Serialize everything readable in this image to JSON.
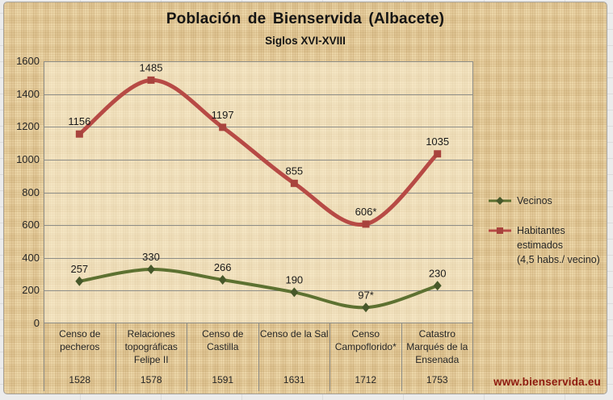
{
  "watermark": "www.bienservida.eu",
  "colors": {
    "gridline": "#8d8d87",
    "plot_border": "#8d8d87",
    "text": "#1a1a1a",
    "watermark": "#8e1a0e",
    "parchment": "#e9d09e"
  },
  "chart_data": {
    "type": "line",
    "title": "Población  de Bienservida (Albacete)",
    "subtitle": "Siglos XVI-XVIII",
    "grid": true,
    "legend_position": "right",
    "y_axis": {
      "min": 0,
      "max": 1600,
      "step": 200
    },
    "categories": [
      {
        "lines": [
          "Censo de",
          "pecheros"
        ],
        "year": "1528"
      },
      {
        "lines": [
          "Relaciones",
          "topográficas",
          "Felipe II"
        ],
        "year": "1578"
      },
      {
        "lines": [
          "Censo de",
          "Castilla"
        ],
        "year": "1591"
      },
      {
        "lines": [
          "Censo de la Sal"
        ],
        "year": "1631"
      },
      {
        "lines": [
          "Censo",
          "Campoflorido*"
        ],
        "year": "1712"
      },
      {
        "lines": [
          "Catastro",
          "Marqués de la",
          "Ensenada"
        ],
        "year": "1753"
      }
    ],
    "series": [
      {
        "name": "Vecinos",
        "legend_lines": [
          "Vecinos"
        ],
        "values": [
          257,
          330,
          266,
          190,
          97,
          230
        ],
        "labels": [
          "257",
          "330",
          "266",
          "190",
          "97*",
          "230"
        ],
        "color": "#5d7131",
        "marker_color": "#47582a",
        "marker": "diamond",
        "line_width": 4
      },
      {
        "name": "Habitantes estimados (4,5 habs./ vecino)",
        "legend_lines": [
          "Habitantes estimados",
          "(4,5 habs./ vecino)"
        ],
        "values": [
          1156,
          1485,
          1197,
          855,
          606,
          1035
        ],
        "labels": [
          "1156",
          "1485",
          "1197",
          "855",
          "606*",
          "1035"
        ],
        "color": "#b74a45",
        "marker_color": "#a8433d",
        "marker": "square",
        "line_width": 5
      }
    ]
  }
}
